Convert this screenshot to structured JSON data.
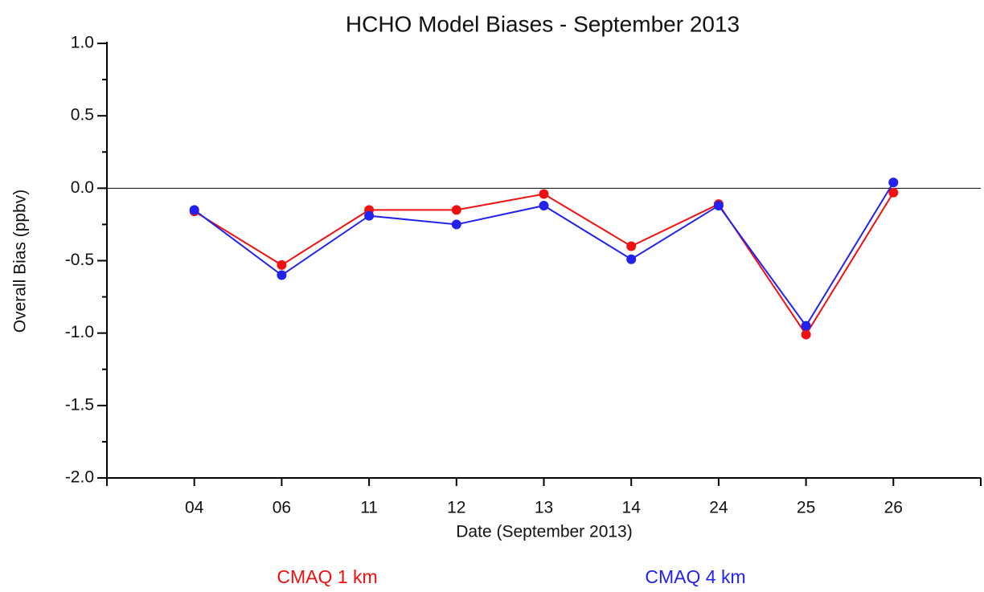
{
  "chart_data": {
    "type": "line",
    "title": "HCHO Model Biases - September 2013",
    "x_label": "Date (September 2013)",
    "y_label": "Overall Bias (ppbv)",
    "categories": [
      "04",
      "06",
      "11",
      "12",
      "13",
      "14",
      "24",
      "25",
      "26"
    ],
    "series": [
      {
        "name": "CMAQ 1 km",
        "color": "#ee1111",
        "values": [
          -0.16,
          -0.53,
          -0.15,
          -0.15,
          -0.04,
          -0.4,
          -0.11,
          -1.01,
          -0.03
        ]
      },
      {
        "name": "CMAQ 4 km",
        "color": "#2222ee",
        "values": [
          -0.15,
          -0.6,
          -0.19,
          -0.25,
          -0.12,
          -0.49,
          -0.12,
          -0.95,
          0.04
        ]
      }
    ],
    "ylim": [
      -2.0,
      1.0
    ],
    "yticks": [
      {
        "value": -2,
        "label": "-2.0"
      },
      {
        "value": -1.5,
        "label": "-1.5"
      },
      {
        "value": -1,
        "label": "-1.0"
      },
      {
        "value": -0.5,
        "label": "-0.5"
      },
      {
        "value": 0,
        "label": "0.0"
      },
      {
        "value": 0.5,
        "label": "0.5"
      },
      {
        "value": 1,
        "label": "1.0"
      }
    ],
    "legend": "bottom"
  }
}
